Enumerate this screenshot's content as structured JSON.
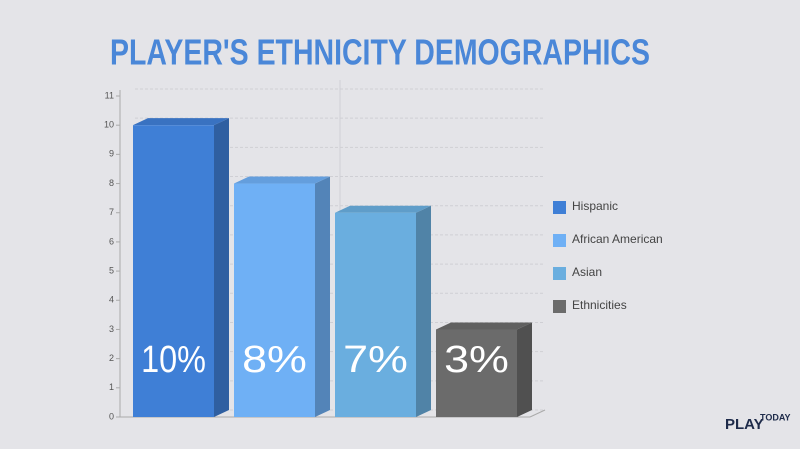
{
  "chart_data": {
    "type": "bar3d",
    "title": "PLAYER'S ETHNICITY DEMOGRAPHICS",
    "series": [
      {
        "name": "Hispanic",
        "color": "#3f7fd6",
        "values": [
          10
        ],
        "value_labels": [
          "10%"
        ]
      },
      {
        "name": "African American",
        "color": "#6fb0f5",
        "values": [
          8
        ],
        "value_labels": [
          "8%"
        ]
      },
      {
        "name": "Asian",
        "color": "#6aaedf",
        "values": [
          7
        ],
        "value_labels": [
          "7%"
        ]
      },
      {
        "name": "Ethnicities",
        "color": "#6b6b6b",
        "values": [
          3
        ],
        "value_labels": [
          "3%"
        ]
      }
    ],
    "ylim": [
      0,
      11
    ],
    "yticks": [
      0,
      1,
      2,
      3,
      4,
      5,
      6,
      7,
      8,
      9,
      10,
      11
    ],
    "grid": true,
    "legend": "right"
  },
  "logo": {
    "left": "PLAY",
    "right": "TODAY"
  }
}
